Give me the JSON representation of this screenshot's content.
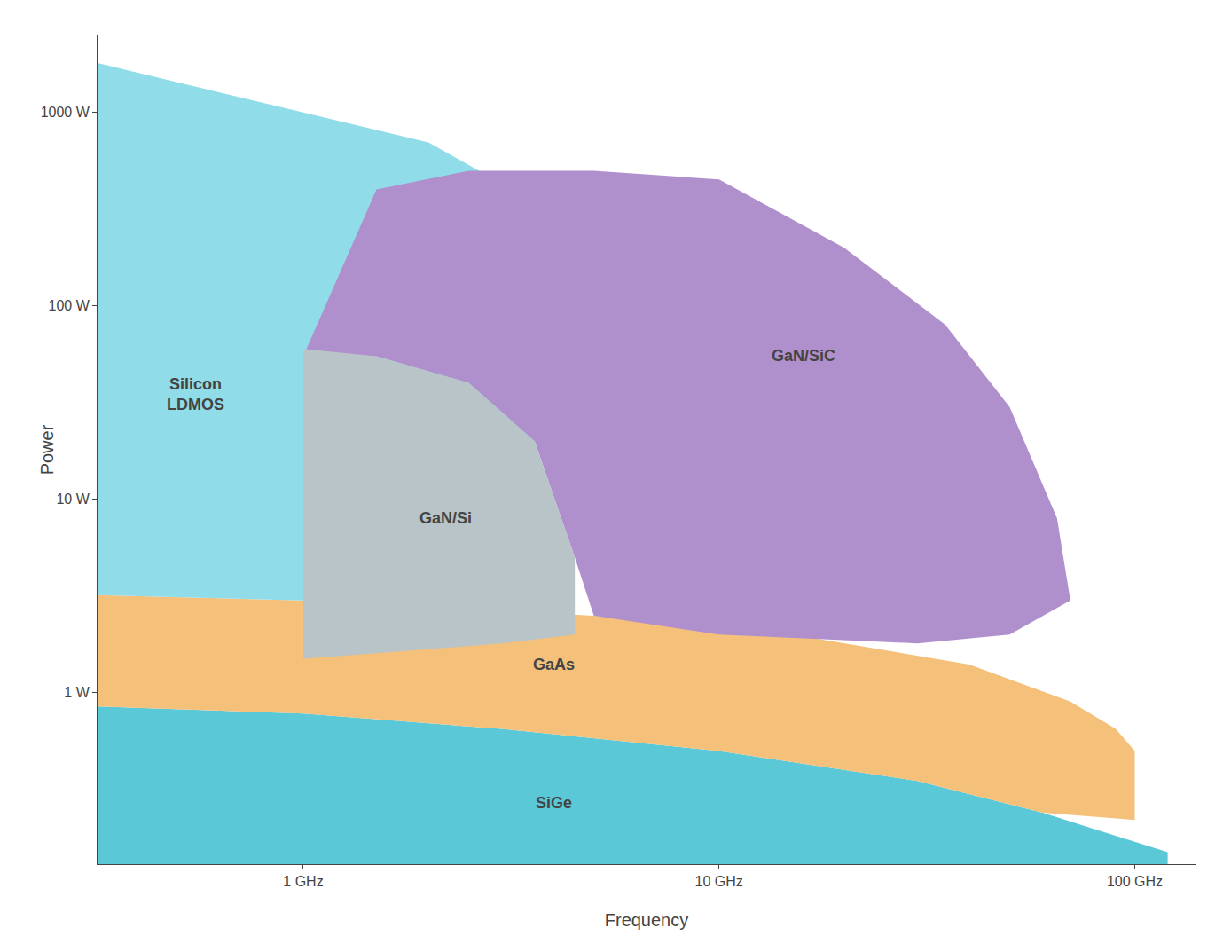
{
  "chart_data": {
    "type": "area",
    "log": true,
    "grid": false,
    "xlabel": "Frequency",
    "ylabel": "Power",
    "xlim": [
      0.32,
      140
    ],
    "ylim": [
      0.13,
      2500
    ],
    "xticks": [
      {
        "value": 1,
        "label": "1 GHz"
      },
      {
        "value": 10,
        "label": "10 GHz"
      },
      {
        "value": 100,
        "label": "100 GHz"
      }
    ],
    "yticks": [
      {
        "value": 1,
        "label": "1 W"
      },
      {
        "value": 10,
        "label": "10 W"
      },
      {
        "value": 100,
        "label": "100 W"
      },
      {
        "value": 1000,
        "label": "1000 W"
      }
    ],
    "series": [
      {
        "color": "#5bc8d8",
        "x": [
          0.32,
          0.32,
          1.0,
          3.0,
          10.0,
          30.0,
          60.0,
          100.0,
          120.0,
          120.0
        ],
        "y": [
          0.13,
          0.85,
          0.78,
          0.65,
          0.5,
          0.35,
          0.24,
          0.17,
          0.15,
          0.13
        ]
      },
      {
        "color": "#f5c07a",
        "x": [
          0.32,
          0.32,
          1.0,
          5.0,
          15.0,
          40.0,
          70.0,
          90.0,
          100.0,
          100.0,
          60.0,
          30.0,
          10.0,
          3.0,
          1.0
        ],
        "y": [
          0.85,
          3.2,
          3.0,
          2.5,
          2.0,
          1.4,
          0.9,
          0.65,
          0.5,
          0.22,
          0.24,
          0.35,
          0.5,
          0.65,
          0.78
        ]
      },
      {
        "color": "#90dce8",
        "x": [
          0.32,
          0.32,
          1.0,
          2.0,
          3.0,
          3.6,
          3.6,
          1.0,
          0.32
        ],
        "y": [
          0.85,
          1800,
          1000,
          700,
          430,
          60,
          3.2,
          3.0,
          3.2
        ]
      },
      {
        "color": "#b090cc",
        "x": [
          1.0,
          1.5,
          2.5,
          5.0,
          10.0,
          20.0,
          35.0,
          50.0,
          65.0,
          70.0,
          50.0,
          30.0,
          10.0,
          5.0,
          4.5,
          3.6,
          2.5,
          1.5
        ],
        "y": [
          55,
          400,
          500,
          500,
          450,
          200,
          80,
          30,
          8,
          3.0,
          2.0,
          1.8,
          2.0,
          2.5,
          5,
          20,
          40,
          55
        ]
      },
      {
        "color": "#b8c4c8",
        "x": [
          1.0,
          1.0,
          1.5,
          2.5,
          3.6,
          4.5,
          4.5,
          3.0,
          1.5
        ],
        "y": [
          1.5,
          60,
          55,
          40,
          20,
          5,
          2.0,
          1.8,
          1.6
        ]
      }
    ],
    "annotations": [
      {
        "text": "Silicon\nLDMOS",
        "x": 0.55,
        "y": 35
      },
      {
        "text": "GaN/Si",
        "x": 2.2,
        "y": 8
      },
      {
        "text": "GaN/SiC",
        "x": 16,
        "y": 55
      },
      {
        "text": "GaAs",
        "x": 4.0,
        "y": 1.4
      },
      {
        "text": "SiGe",
        "x": 4.0,
        "y": 0.27
      }
    ]
  }
}
